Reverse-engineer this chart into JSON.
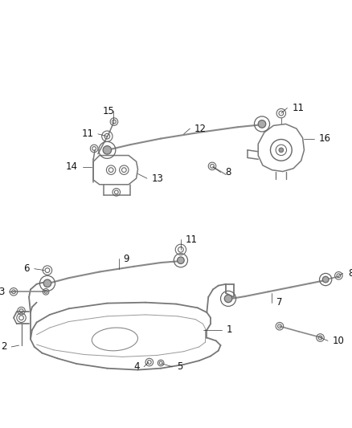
{
  "bg_color": "#ffffff",
  "fig_width": 4.38,
  "fig_height": 5.33,
  "dpi": 100,
  "line_color": "#666666",
  "text_color": "#111111",
  "font_size": 8.5
}
